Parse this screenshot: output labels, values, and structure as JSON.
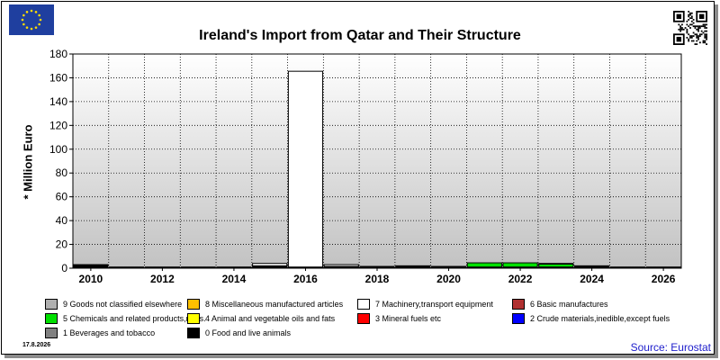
{
  "title": "Ireland's Import from Qatar and Their Structure",
  "date_stamp": "17.8.2026",
  "source": "Source: Eurostat",
  "icons": {
    "flag": "eu-flag-icon",
    "qr": "qr-code-icon"
  },
  "legend": [
    {
      "label": "9 Goods not classified elsewhere",
      "color": "#b0b0b0"
    },
    {
      "label": "8 Miscellaneous manufactured articles",
      "color": "#ffc000"
    },
    {
      "label": "7 Machinery,transport equipment",
      "color": "#ffffff"
    },
    {
      "label": "6 Basic manufactures",
      "color": "#b03030"
    },
    {
      "label": "5 Chemicals and related products,n.e.s.",
      "color": "#00e000"
    },
    {
      "label": "4 Animal and vegetable oils and fats",
      "color": "#ffff00"
    },
    {
      "label": "3 Mineral fuels etc",
      "color": "#ff0000"
    },
    {
      "label": "2 Crude materials,inedible,except fuels",
      "color": "#0000ff"
    },
    {
      "label": "1 Beverages and tobacco",
      "color": "#808080"
    },
    {
      "label": "0 Food and live animals",
      "color": "#000000"
    }
  ],
  "chart_data": {
    "type": "bar",
    "stacked": true,
    "title": "Ireland's Import from Qatar and Their Structure",
    "ylabel": "* Million Euro",
    "xlabel": "",
    "ylim": [
      0,
      180
    ],
    "y_ticks": [
      0,
      20,
      40,
      60,
      80,
      100,
      120,
      140,
      160,
      180
    ],
    "x_tick_labels": [
      "2010",
      "2012",
      "2014",
      "2016",
      "2018",
      "2020",
      "2022",
      "2024",
      "2026"
    ],
    "grid": true,
    "categories": [
      "2010",
      "2011",
      "2012",
      "2013",
      "2014",
      "2015",
      "2016",
      "2017",
      "2018",
      "2019",
      "2020",
      "2021",
      "2022",
      "2023",
      "2024",
      "2025",
      "2026"
    ],
    "series": [
      {
        "name": "0 Food and live animals",
        "color": "#000000",
        "values": [
          2.5,
          1,
          1,
          1,
          1,
          2,
          1,
          1.5,
          1.5,
          2,
          1.5,
          1,
          1,
          1,
          1.5,
          1,
          1
        ]
      },
      {
        "name": "5 Chemicals and related products,n.e.s.",
        "color": "#00e000",
        "values": [
          0,
          0,
          0,
          0,
          0,
          0,
          0,
          0,
          0,
          0,
          0,
          3.5,
          3.5,
          2.5,
          0,
          0,
          0
        ]
      },
      {
        "name": "7 Machinery,transport equipment",
        "color": "#ffffff",
        "values": [
          0.5,
          0,
          0,
          0,
          0,
          2,
          164.5,
          1.5,
          0,
          0,
          0,
          0,
          0,
          0,
          0,
          0,
          0
        ]
      },
      {
        "name": "6 Basic manufactures",
        "color": "#b03030",
        "values": [
          0,
          0,
          0,
          0,
          0,
          0,
          0,
          0,
          0,
          0,
          0,
          0,
          0,
          0,
          0.5,
          0,
          0
        ]
      },
      {
        "name": "8 Miscellaneous manufactured articles",
        "color": "#ffc000",
        "values": [
          0,
          0,
          0,
          0,
          0,
          0,
          0,
          0,
          0,
          0,
          0,
          0,
          0,
          0.5,
          0,
          0,
          0
        ]
      }
    ]
  }
}
